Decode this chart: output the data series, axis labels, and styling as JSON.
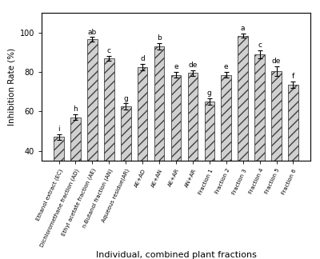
{
  "categories": [
    "Ethanol extract (EC)",
    "Dichloromethane fraction (AD)",
    "Ethyl acetate fraction (AE)",
    "n-Butanol fraction (AN)",
    "Aqueous residue(AR)",
    "AE+AD",
    "AE+AN",
    "AE+AR",
    "AN+AR",
    "Fraction 1",
    "Fraction 2",
    "Fraction 3",
    "Fraction 4",
    "Fraction 5",
    "Fraction 6"
  ],
  "values": [
    47.0,
    57.0,
    96.5,
    87.0,
    62.5,
    82.5,
    93.0,
    78.5,
    79.5,
    65.0,
    78.5,
    98.5,
    89.0,
    80.5,
    73.5
  ],
  "errors": [
    1.5,
    1.5,
    1.2,
    1.2,
    1.5,
    1.5,
    1.5,
    1.5,
    1.5,
    1.5,
    1.5,
    1.2,
    2.0,
    2.5,
    1.5
  ],
  "letters": [
    "i",
    "h",
    "ab",
    "c",
    "g",
    "d",
    "b",
    "e",
    "de",
    "g",
    "e",
    "a",
    "c",
    "de",
    "f"
  ],
  "ylabel": "Inhibition Rate (%)",
  "xlabel": "Individual, combined plant fractions",
  "ylim_min": 35,
  "ylim_max": 110,
  "yticks": [
    40,
    60,
    80,
    100
  ],
  "bar_color": "#d0d0d0",
  "hatch": "///",
  "bar_edgecolor": "#404040",
  "figure_facecolor": "#ffffff",
  "axes_facecolor": "#ffffff",
  "bar_width": 0.6
}
